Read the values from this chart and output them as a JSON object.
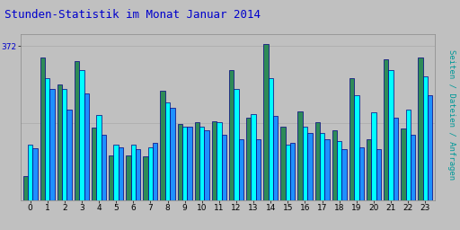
{
  "title": "Stunden-Statistik im Monat Januar 2014",
  "title_color": "#0000cc",
  "title_fontsize": 9,
  "ylabel_right": "Seiten / Dateien / Anfragen",
  "ylabel_right_color": "#009999",
  "ylabel_right_fontsize": 6.5,
  "ytick_label": "372",
  "ytick_color": "#0000cc",
  "background_color": "#c0c0c0",
  "plot_bg_color": "#c0c0c0",
  "hours": [
    0,
    1,
    2,
    3,
    4,
    5,
    6,
    7,
    8,
    9,
    10,
    11,
    12,
    13,
    14,
    15,
    16,
    17,
    18,
    19,
    20,
    21,
    22,
    23
  ],
  "series1_color": "#2e8b57",
  "series2_color": "#00ffff",
  "series3_color": "#1e90ff",
  "series1": [
    58,
    345,
    280,
    335,
    175,
    108,
    108,
    105,
    265,
    183,
    188,
    190,
    315,
    198,
    378,
    178,
    215,
    188,
    168,
    295,
    148,
    340,
    173,
    345
  ],
  "series2": [
    135,
    295,
    268,
    315,
    205,
    135,
    133,
    128,
    235,
    178,
    178,
    188,
    268,
    208,
    295,
    133,
    178,
    163,
    143,
    253,
    213,
    315,
    218,
    298
  ],
  "series3": [
    125,
    268,
    218,
    258,
    158,
    128,
    123,
    138,
    223,
    178,
    168,
    158,
    148,
    148,
    203,
    138,
    163,
    148,
    123,
    128,
    123,
    198,
    158,
    253
  ],
  "ylim": [
    0,
    400
  ],
  "yticks": [
    186,
    372
  ],
  "grid_color": "#b0b0b0",
  "bar_width": 0.28,
  "edge_color": "#000080",
  "figsize": [
    5.12,
    2.56
  ],
  "dpi": 100
}
